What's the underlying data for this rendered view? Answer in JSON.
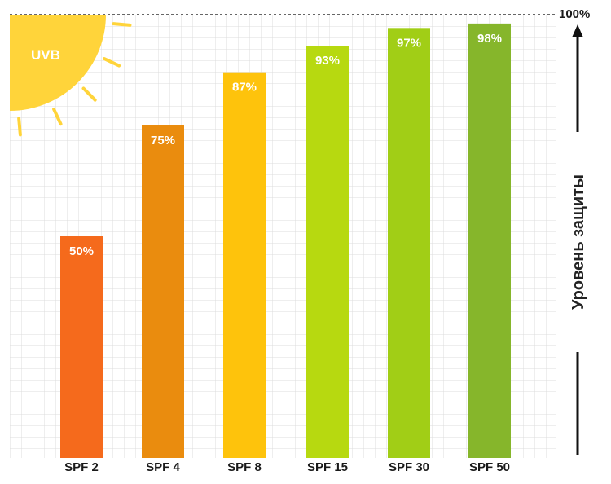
{
  "chart_data": {
    "type": "bar",
    "categories": [
      "SPF 2",
      "SPF 4",
      "SPF 8",
      "SPF 15",
      "SPF 30",
      "SPF 50"
    ],
    "values": [
      50,
      75,
      87,
      93,
      97,
      98
    ],
    "value_labels": [
      "50%",
      "75%",
      "87%",
      "93%",
      "97%",
      "98%"
    ],
    "colors": [
      "#f56a1c",
      "#ea8c0e",
      "#fec30c",
      "#b7d910",
      "#a1ce16",
      "#86b62b"
    ],
    "ylim": [
      0,
      100
    ],
    "max_label": "100%",
    "ylabel": "Уровень защиты",
    "grid": true,
    "grid_color": "#dddddd"
  },
  "sun": {
    "label": "UVB",
    "color": "#ffd43a"
  }
}
